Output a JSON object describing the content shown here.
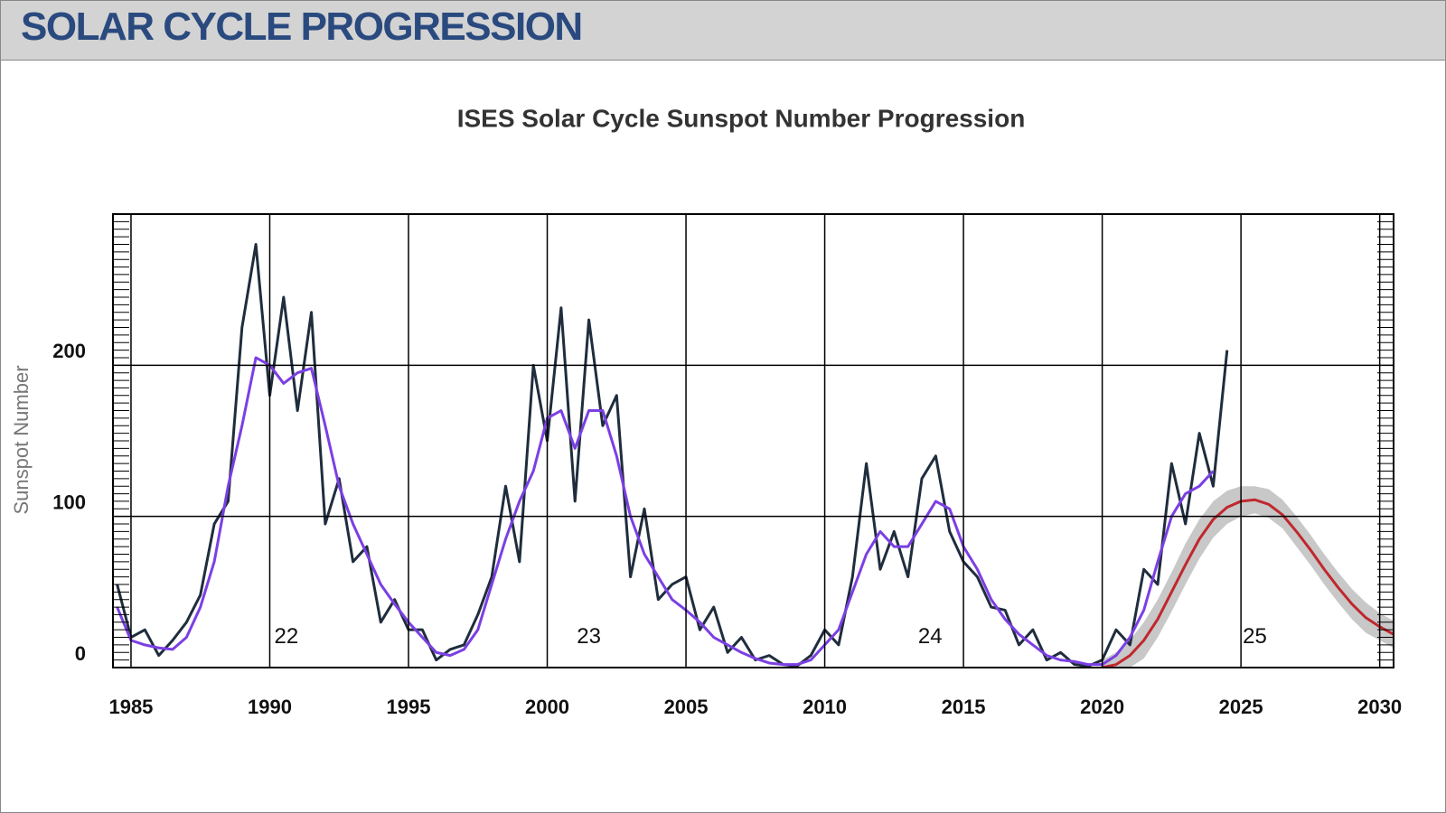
{
  "header": {
    "title": "SOLAR CYCLE PROGRESSION"
  },
  "chart_data": {
    "type": "line",
    "title": "ISES Solar Cycle Sunspot Number Progression",
    "y_label": "Sunspot Number",
    "xlim": [
      1984.35,
      2030.5
    ],
    "xticks": [
      1985,
      1990,
      1995,
      2000,
      2005,
      2010,
      2015,
      2020,
      2025,
      2030
    ],
    "ylim": [
      0,
      300
    ],
    "yticks": [
      0,
      100,
      200
    ],
    "grid": true,
    "annotations": [
      {
        "text": "22",
        "x": 1990.6,
        "y": 20
      },
      {
        "text": "23",
        "x": 2001.5,
        "y": 20
      },
      {
        "text": "24",
        "x": 2013.8,
        "y": 20
      },
      {
        "text": "25",
        "x": 2025.5,
        "y": 20
      }
    ],
    "band": {
      "color": "#c8c8c8",
      "x": [
        2020,
        2020.5,
        2021,
        2021.5,
        2022,
        2022.5,
        2023,
        2023.5,
        2024,
        2024.5,
        2025,
        2025.5,
        2026,
        2026.5,
        2027,
        2027.5,
        2028,
        2028.5,
        2029,
        2029.5,
        2030,
        2030.5
      ],
      "upper": [
        5,
        10,
        18,
        30,
        45,
        63,
        82,
        98,
        110,
        117,
        120,
        120,
        118,
        111,
        100,
        88,
        75,
        63,
        52,
        43,
        36,
        31
      ],
      "lower": [
        0,
        0,
        0,
        6,
        20,
        37,
        55,
        72,
        86,
        95,
        100,
        102,
        99,
        92,
        80,
        68,
        55,
        43,
        32,
        23,
        18,
        13
      ]
    },
    "series": [
      {
        "color": "#1f2d3d",
        "width": 3,
        "x": [
          1984.5,
          1985,
          1985.5,
          1986,
          1986.5,
          1987,
          1987.5,
          1988,
          1988.5,
          1989,
          1989.5,
          1990,
          1990.5,
          1991,
          1991.5,
          1992,
          1992.5,
          1993,
          1993.5,
          1994,
          1994.5,
          1995,
          1995.5,
          1996,
          1996.5,
          1997,
          1997.5,
          1998,
          1998.5,
          1999,
          1999.5,
          2000,
          2000.5,
          2001,
          2001.5,
          2002,
          2002.5,
          2003,
          2003.5,
          2004,
          2004.5,
          2005,
          2005.5,
          2006,
          2006.5,
          2007,
          2007.5,
          2008,
          2008.5,
          2009,
          2009.5,
          2010,
          2010.5,
          2011,
          2011.5,
          2012,
          2012.5,
          2013,
          2013.5,
          2014,
          2014.5,
          2015,
          2015.5,
          2016,
          2016.5,
          2017,
          2017.5,
          2018,
          2018.5,
          2019,
          2019.5,
          2020,
          2020.5,
          2021,
          2021.5,
          2022,
          2022.5,
          2023,
          2023.5,
          2024,
          2024.5
        ],
        "values": [
          55,
          20,
          25,
          8,
          18,
          30,
          48,
          95,
          110,
          225,
          280,
          180,
          245,
          170,
          235,
          95,
          125,
          70,
          80,
          30,
          45,
          25,
          25,
          5,
          12,
          15,
          35,
          60,
          120,
          70,
          200,
          150,
          238,
          110,
          230,
          160,
          180,
          60,
          105,
          45,
          55,
          60,
          25,
          40,
          10,
          20,
          5,
          8,
          2,
          1,
          8,
          25,
          15,
          60,
          135,
          65,
          90,
          60,
          125,
          140,
          90,
          70,
          60,
          40,
          38,
          15,
          25,
          5,
          10,
          2,
          1,
          5,
          25,
          15,
          65,
          55,
          135,
          95,
          155,
          120,
          210
        ]
      },
      {
        "color": "#7b3fe4",
        "width": 3,
        "x": [
          1984.5,
          1985,
          1985.5,
          1986,
          1986.5,
          1987,
          1987.5,
          1988,
          1988.5,
          1989,
          1989.5,
          1990,
          1990.5,
          1991,
          1991.5,
          1992,
          1992.5,
          1993,
          1993.5,
          1994,
          1994.5,
          1995,
          1995.5,
          1996,
          1996.5,
          1997,
          1997.5,
          1998,
          1998.5,
          1999,
          1999.5,
          2000,
          2000.5,
          2001,
          2001.5,
          2002,
          2002.5,
          2003,
          2003.5,
          2004,
          2004.5,
          2005,
          2005.5,
          2006,
          2006.5,
          2007,
          2007.5,
          2008,
          2008.5,
          2009,
          2009.5,
          2010,
          2010.5,
          2011,
          2011.5,
          2012,
          2012.5,
          2013,
          2013.5,
          2014,
          2014.5,
          2015,
          2015.5,
          2016,
          2016.5,
          2017,
          2017.5,
          2018,
          2018.5,
          2019,
          2019.5,
          2020,
          2020.5,
          2021,
          2021.5,
          2022,
          2022.5,
          2023,
          2023.5,
          2024
        ],
        "values": [
          40,
          18,
          15,
          13,
          12,
          20,
          40,
          70,
          120,
          160,
          205,
          200,
          188,
          195,
          198,
          160,
          120,
          95,
          75,
          55,
          42,
          30,
          20,
          10,
          8,
          12,
          25,
          55,
          85,
          110,
          130,
          165,
          170,
          145,
          170,
          170,
          140,
          100,
          75,
          60,
          45,
          38,
          30,
          20,
          15,
          10,
          6,
          3,
          2,
          2,
          5,
          15,
          25,
          50,
          75,
          90,
          80,
          80,
          95,
          110,
          105,
          80,
          65,
          45,
          32,
          22,
          15,
          8,
          5,
          4,
          2,
          2,
          8,
          20,
          38,
          70,
          100,
          115,
          120,
          130
        ]
      },
      {
        "color": "#c0282d",
        "width": 3,
        "x": [
          2020,
          2020.5,
          2021,
          2021.5,
          2022,
          2022.5,
          2023,
          2023.5,
          2024,
          2024.5,
          2025,
          2025.5,
          2026,
          2026.5,
          2027,
          2027.5,
          2028,
          2028.5,
          2029,
          2029.5,
          2030,
          2030.5
        ],
        "values": [
          0,
          2,
          8,
          18,
          32,
          50,
          68,
          85,
          98,
          106,
          110,
          111,
          108,
          101,
          90,
          78,
          65,
          53,
          42,
          33,
          27,
          22
        ]
      }
    ]
  }
}
